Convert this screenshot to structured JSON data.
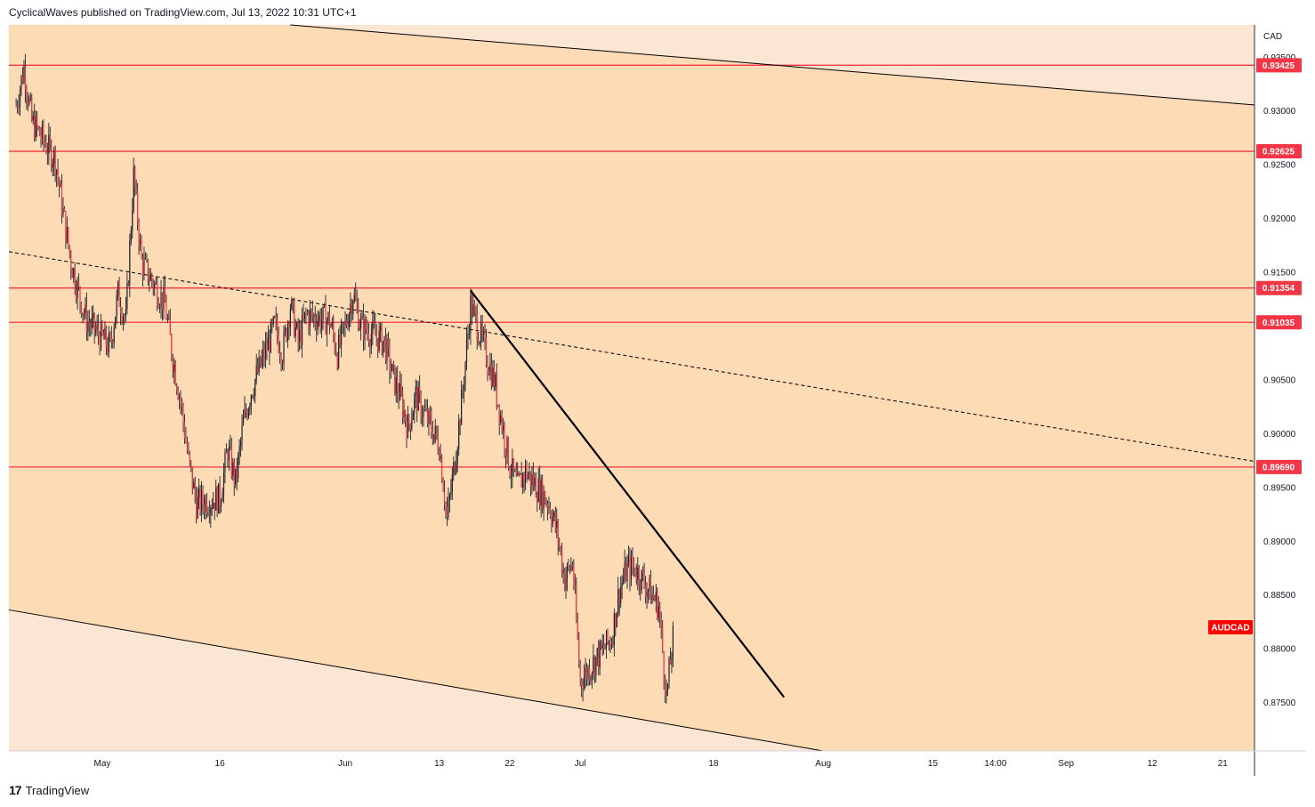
{
  "header": {
    "publish_text": "CyclicalWaves published on TradingView.com, Jul 13, 2022 10:31 UTC+1"
  },
  "footer": {
    "brand": "TradingView"
  },
  "colors": {
    "channel_fill": "#fcdbb5",
    "outside_fill": "#fbe6d3",
    "resistance_line": "#f23645",
    "candle": "#1e222d",
    "trendline": "#000000",
    "symbol_tag": "#ff0000"
  },
  "chart_data": {
    "type": "candlestick",
    "symbol": "AUDCAD",
    "currency": "CAD",
    "ylim": [
      0.8705,
      0.938
    ],
    "y_ticks": [
      "0.93500",
      "0.93000",
      "0.92500",
      "0.92000",
      "0.91500",
      "0.91000",
      "0.90500",
      "0.90000",
      "0.89500",
      "0.89000",
      "0.88500",
      "0.88000",
      "0.87500"
    ],
    "x_ticks": [
      "May",
      "16",
      "Jun",
      "13",
      "22",
      "Jul",
      "18",
      "Aug",
      "15",
      "14:00",
      "Sep",
      "12",
      "21"
    ],
    "horizontal_levels": [
      {
        "label": "0.93425",
        "value": 0.93425
      },
      {
        "label": "0.92625",
        "value": 0.92625
      },
      {
        "label": "0.91354",
        "value": 0.91354
      },
      {
        "label": "0.91035",
        "value": 0.91035
      },
      {
        "label": "0.89690",
        "value": 0.8969
      }
    ],
    "channel": {
      "upper": [
        [
          "2022-05-25",
          0.938
        ],
        [
          "2022-09-26",
          0.9305
        ]
      ],
      "lower": [
        [
          "2022-04-20",
          0.8835
        ],
        [
          "2022-08-01",
          0.8705
        ]
      ],
      "midline_dashed": [
        [
          "2022-04-20",
          0.9168
        ],
        [
          "2022-09-26",
          0.8973
        ]
      ]
    },
    "descending_trendline": [
      [
        "2022-06-17",
        0.9133
      ],
      [
        "2022-07-27",
        0.8755
      ]
    ],
    "price_path": [
      [
        "2022-04-20",
        0.9305
      ],
      [
        "2022-04-21",
        0.934
      ],
      [
        "2022-04-22",
        0.929
      ],
      [
        "2022-04-25",
        0.9255
      ],
      [
        "2022-04-26",
        0.9205
      ],
      [
        "2022-04-27",
        0.916
      ],
      [
        "2022-04-28",
        0.913
      ],
      [
        "2022-04-29",
        0.9105
      ],
      [
        "2022-05-02",
        0.908
      ],
      [
        "2022-05-03",
        0.913
      ],
      [
        "2022-05-04",
        0.9105
      ],
      [
        "2022-05-05",
        0.924
      ],
      [
        "2022-05-06",
        0.916
      ],
      [
        "2022-05-09",
        0.912
      ],
      [
        "2022-05-10",
        0.907
      ],
      [
        "2022-05-11",
        0.903
      ],
      [
        "2022-05-12",
        0.8975
      ],
      [
        "2022-05-13",
        0.8935
      ],
      [
        "2022-05-16",
        0.894
      ],
      [
        "2022-05-17",
        0.8985
      ],
      [
        "2022-05-18",
        0.8955
      ],
      [
        "2022-05-19",
        0.901
      ],
      [
        "2022-05-20",
        0.904
      ],
      [
        "2022-05-23",
        0.91
      ],
      [
        "2022-05-24",
        0.9075
      ],
      [
        "2022-05-25",
        0.912
      ],
      [
        "2022-05-26",
        0.9085
      ],
      [
        "2022-05-27",
        0.911
      ],
      [
        "2022-05-30",
        0.9105
      ],
      [
        "2022-05-31",
        0.9075
      ],
      [
        "2022-06-01",
        0.91
      ],
      [
        "2022-06-02",
        0.913
      ],
      [
        "2022-06-03",
        0.91
      ],
      [
        "2022-06-06",
        0.9085
      ],
      [
        "2022-06-07",
        0.9055
      ],
      [
        "2022-06-08",
        0.9035
      ],
      [
        "2022-06-09",
        0.9005
      ],
      [
        "2022-06-10",
        0.9035
      ],
      [
        "2022-06-13",
        0.899
      ],
      [
        "2022-06-14",
        0.892
      ],
      [
        "2022-06-15",
        0.8975
      ],
      [
        "2022-06-16",
        0.904
      ],
      [
        "2022-06-17",
        0.912
      ],
      [
        "2022-06-20",
        0.905
      ],
      [
        "2022-06-21",
        0.901
      ],
      [
        "2022-06-22",
        0.897
      ],
      [
        "2022-06-23",
        0.895
      ],
      [
        "2022-06-24",
        0.8965
      ],
      [
        "2022-06-27",
        0.8935
      ],
      [
        "2022-06-28",
        0.891
      ],
      [
        "2022-06-29",
        0.8865
      ],
      [
        "2022-06-30",
        0.888
      ],
      [
        "2022-07-01",
        0.877
      ],
      [
        "2022-07-04",
        0.88
      ],
      [
        "2022-07-05",
        0.881
      ],
      [
        "2022-07-06",
        0.8855
      ],
      [
        "2022-07-07",
        0.8875
      ],
      [
        "2022-07-08",
        0.8875
      ],
      [
        "2022-07-11",
        0.884
      ],
      [
        "2022-07-12",
        0.8755
      ],
      [
        "2022-07-13",
        0.882
      ]
    ],
    "last_price_tag": "AUDCAD"
  }
}
